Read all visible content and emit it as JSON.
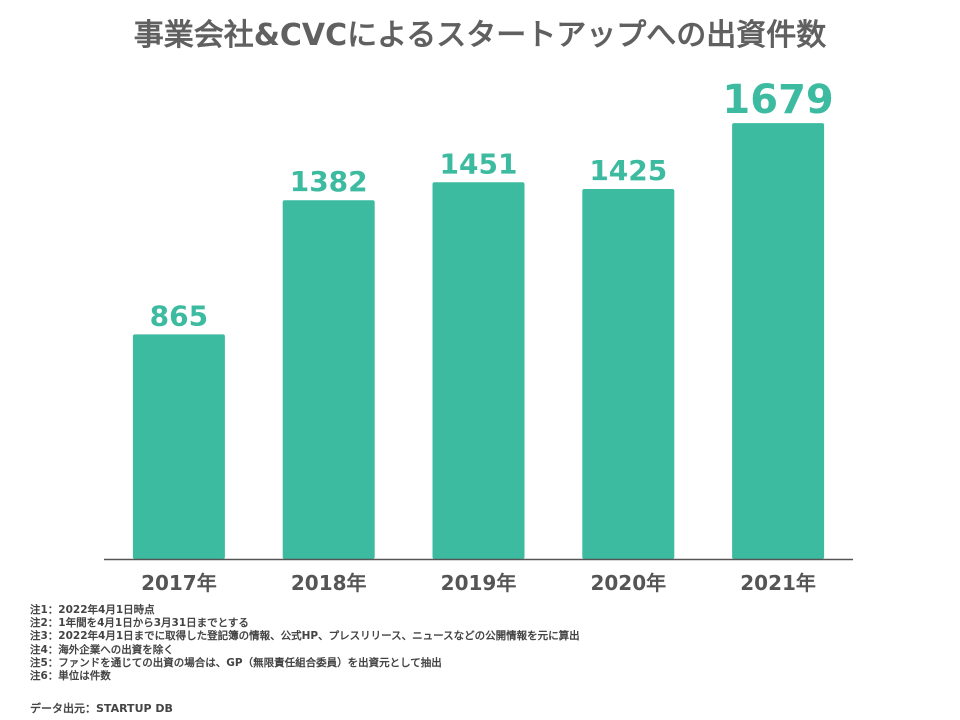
{
  "title": "事業会社&CVCによるスタートアップへの出資件数",
  "chart_data": {
    "type": "bar",
    "title": "事業会社&CVCによるスタートアップへの出資件数",
    "categories": [
      "2017年",
      "2018年",
      "2019年",
      "2020年",
      "2021年"
    ],
    "values": [
      865,
      1382,
      1451,
      1425,
      1679
    ],
    "data_labels": [
      "865",
      "1382",
      "1451",
      "1425",
      "1679"
    ],
    "xlabel": "",
    "ylabel": "",
    "ylim": [
      0,
      1845
    ],
    "grid": false,
    "legend": "none",
    "bar_color": "#3dbba0",
    "label_color": "#3dbba0",
    "axis_color": "#555555",
    "tick_label_color": "#555555"
  },
  "notes": [
    "注1：2022年4月1日時点",
    "注2：1年間を4月1日から3月31日までとする",
    "注3：2022年4月1日までに取得した登記簿の情報、公式HP、プレスリリース、ニュースなどの公開情報を元に算出",
    "注4：海外企業への出資を除く",
    "注5：ファンドを通じての出資の場合は、GP（無限責任組合委員）を出資元として抽出",
    "注6：単位は件数"
  ],
  "source": "データ出元：STARTUP DB"
}
